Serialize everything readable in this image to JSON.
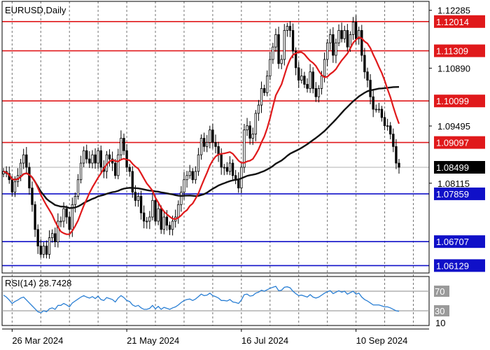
{
  "chart_data": {
    "type": "candlestick",
    "title": "EURUSD,Daily",
    "price_axis": {
      "ticks": [
        1.12285,
        1.1089,
        1.09495,
        1.08115
      ],
      "ylim": [
        1.0595,
        1.125
      ]
    },
    "date_axis": {
      "ticks": [
        {
          "label": "26 Mar 2024",
          "bar": 3
        },
        {
          "label": "21 May 2024",
          "bar": 43
        },
        {
          "label": "16 Jul 2024",
          "bar": 83
        },
        {
          "label": "10 Sep 2024",
          "bar": 123
        }
      ],
      "bars_total": 149
    },
    "levels": [
      {
        "value": 1.12014,
        "label": "1.12014",
        "color": "#e0191b"
      },
      {
        "value": 1.11309,
        "label": "1.11309",
        "color": "#e0191b"
      },
      {
        "value": 1.10099,
        "label": "1.10099",
        "color": "#e0191b"
      },
      {
        "value": 1.09097,
        "label": "1.09097",
        "color": "#e0191b"
      },
      {
        "value": 1.07859,
        "label": "1.07859",
        "color": "#1010c8"
      },
      {
        "value": 1.06707,
        "label": "1.06707",
        "color": "#1010c8"
      },
      {
        "value": 1.06129,
        "label": "1.06129",
        "color": "#1010c8"
      }
    ],
    "current_price": {
      "value": 1.08499,
      "label": "1.08499"
    },
    "closes": [
      1.084,
      1.0835,
      1.082,
      1.079,
      1.0815,
      1.083,
      1.086,
      1.088,
      1.085,
      1.08,
      1.076,
      1.07,
      1.066,
      1.064,
      1.066,
      1.064,
      1.068,
      1.069,
      1.067,
      1.072,
      1.072,
      1.075,
      1.073,
      1.07,
      1.076,
      1.078,
      1.082,
      1.086,
      1.089,
      1.087,
      1.086,
      1.088,
      1.086,
      1.089,
      1.085,
      1.084,
      1.088,
      1.087,
      1.086,
      1.083,
      1.088,
      1.092,
      1.089,
      1.085,
      1.084,
      1.079,
      1.077,
      1.078,
      1.074,
      1.072,
      1.072,
      1.073,
      1.077,
      1.072,
      1.075,
      1.07,
      1.073,
      1.071,
      1.07,
      1.072,
      1.073,
      1.076,
      1.079,
      1.082,
      1.083,
      1.084,
      1.082,
      1.084,
      1.088,
      1.092,
      1.09,
      1.091,
      1.094,
      1.091,
      1.09,
      1.088,
      1.085,
      1.085,
      1.084,
      1.086,
      1.083,
      1.082,
      1.08,
      1.085,
      1.094,
      1.095,
      1.092,
      1.093,
      1.098,
      1.1,
      1.104,
      1.103,
      1.107,
      1.111,
      1.114,
      1.117,
      1.11,
      1.111,
      1.118,
      1.119,
      1.118,
      1.113,
      1.109,
      1.106,
      1.107,
      1.105,
      1.104,
      1.108,
      1.104,
      1.102,
      1.104,
      1.107,
      1.111,
      1.115,
      1.117,
      1.112,
      1.115,
      1.118,
      1.116,
      1.118,
      1.114,
      1.117,
      1.12,
      1.116,
      1.118,
      1.112,
      1.108,
      1.106,
      1.102,
      1.099,
      1.099,
      1.099,
      1.097,
      1.095,
      1.095,
      1.093,
      1.09,
      1.086,
      1.085
    ],
    "rsi": {
      "label": "RSI(14) 28.7428",
      "ylim": [
        0,
        100
      ],
      "levels": [
        {
          "value": 70,
          "label": "70"
        },
        {
          "value": 30,
          "label": "30"
        }
      ],
      "scale_label": "10",
      "values": [
        62,
        58,
        52,
        45,
        49,
        52,
        56,
        58,
        52,
        46,
        40,
        34,
        28,
        26,
        30,
        28,
        34,
        36,
        33,
        41,
        41,
        45,
        42,
        38,
        46,
        50,
        54,
        58,
        61,
        58,
        56,
        59,
        55,
        60,
        53,
        51,
        57,
        55,
        53,
        48,
        56,
        61,
        57,
        51,
        49,
        42,
        39,
        41,
        36,
        33,
        33,
        35,
        41,
        34,
        39,
        33,
        37,
        35,
        33,
        36,
        38,
        42,
        47,
        51,
        53,
        54,
        51,
        54,
        59,
        64,
        61,
        62,
        66,
        61,
        59,
        56,
        51,
        51,
        50,
        53,
        48,
        47,
        45,
        52,
        63,
        64,
        60,
        61,
        66,
        68,
        72,
        70,
        73,
        76,
        78,
        80,
        71,
        72,
        78,
        79,
        77,
        70,
        65,
        61,
        62,
        60,
        58,
        63,
        58,
        56,
        58,
        62,
        66,
        69,
        71,
        65,
        68,
        71,
        68,
        70,
        64,
        67,
        70,
        64,
        66,
        58,
        53,
        50,
        46,
        42,
        42,
        42,
        40,
        38,
        38,
        36,
        33,
        30,
        29
      ]
    }
  }
}
